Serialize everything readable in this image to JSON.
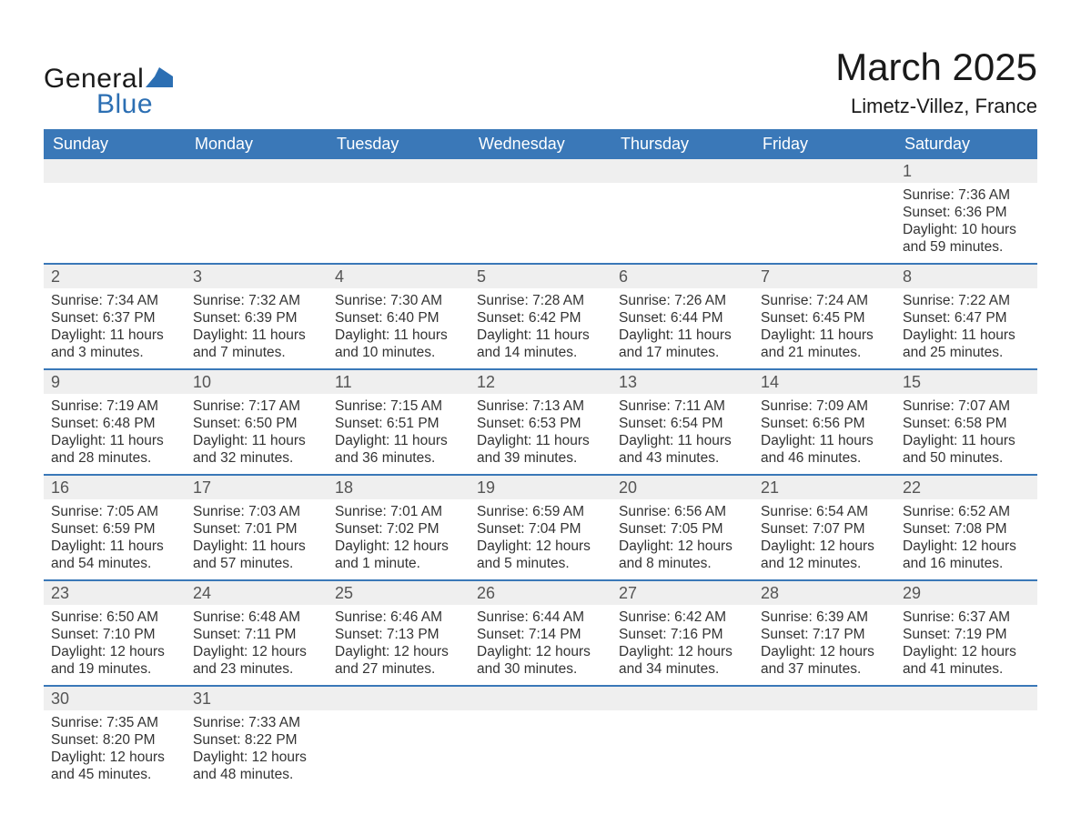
{
  "brand": {
    "general": "General",
    "blue": "Blue"
  },
  "title": "March 2025",
  "location": "Limetz-Villez, France",
  "colors": {
    "header_bg": "#3a78b8",
    "header_text": "#ffffff",
    "daynum_bg": "#efefef",
    "row_border": "#3a78b8",
    "body_text": "#333333",
    "logo_blue": "#2c6fb3",
    "page_bg": "#ffffff"
  },
  "typography": {
    "title_fontsize": 42,
    "location_fontsize": 22,
    "dayhead_fontsize": 18,
    "daynum_fontsize": 18,
    "body_fontsize": 15.5,
    "logo_fontsize": 30
  },
  "day_headers": [
    "Sunday",
    "Monday",
    "Tuesday",
    "Wednesday",
    "Thursday",
    "Friday",
    "Saturday"
  ],
  "weeks": [
    [
      {
        "n": "",
        "sr": "",
        "ss": "",
        "dl1": "",
        "dl2": ""
      },
      {
        "n": "",
        "sr": "",
        "ss": "",
        "dl1": "",
        "dl2": ""
      },
      {
        "n": "",
        "sr": "",
        "ss": "",
        "dl1": "",
        "dl2": ""
      },
      {
        "n": "",
        "sr": "",
        "ss": "",
        "dl1": "",
        "dl2": ""
      },
      {
        "n": "",
        "sr": "",
        "ss": "",
        "dl1": "",
        "dl2": ""
      },
      {
        "n": "",
        "sr": "",
        "ss": "",
        "dl1": "",
        "dl2": ""
      },
      {
        "n": "1",
        "sr": "Sunrise: 7:36 AM",
        "ss": "Sunset: 6:36 PM",
        "dl1": "Daylight: 10 hours",
        "dl2": "and 59 minutes."
      }
    ],
    [
      {
        "n": "2",
        "sr": "Sunrise: 7:34 AM",
        "ss": "Sunset: 6:37 PM",
        "dl1": "Daylight: 11 hours",
        "dl2": "and 3 minutes."
      },
      {
        "n": "3",
        "sr": "Sunrise: 7:32 AM",
        "ss": "Sunset: 6:39 PM",
        "dl1": "Daylight: 11 hours",
        "dl2": "and 7 minutes."
      },
      {
        "n": "4",
        "sr": "Sunrise: 7:30 AM",
        "ss": "Sunset: 6:40 PM",
        "dl1": "Daylight: 11 hours",
        "dl2": "and 10 minutes."
      },
      {
        "n": "5",
        "sr": "Sunrise: 7:28 AM",
        "ss": "Sunset: 6:42 PM",
        "dl1": "Daylight: 11 hours",
        "dl2": "and 14 minutes."
      },
      {
        "n": "6",
        "sr": "Sunrise: 7:26 AM",
        "ss": "Sunset: 6:44 PM",
        "dl1": "Daylight: 11 hours",
        "dl2": "and 17 minutes."
      },
      {
        "n": "7",
        "sr": "Sunrise: 7:24 AM",
        "ss": "Sunset: 6:45 PM",
        "dl1": "Daylight: 11 hours",
        "dl2": "and 21 minutes."
      },
      {
        "n": "8",
        "sr": "Sunrise: 7:22 AM",
        "ss": "Sunset: 6:47 PM",
        "dl1": "Daylight: 11 hours",
        "dl2": "and 25 minutes."
      }
    ],
    [
      {
        "n": "9",
        "sr": "Sunrise: 7:19 AM",
        "ss": "Sunset: 6:48 PM",
        "dl1": "Daylight: 11 hours",
        "dl2": "and 28 minutes."
      },
      {
        "n": "10",
        "sr": "Sunrise: 7:17 AM",
        "ss": "Sunset: 6:50 PM",
        "dl1": "Daylight: 11 hours",
        "dl2": "and 32 minutes."
      },
      {
        "n": "11",
        "sr": "Sunrise: 7:15 AM",
        "ss": "Sunset: 6:51 PM",
        "dl1": "Daylight: 11 hours",
        "dl2": "and 36 minutes."
      },
      {
        "n": "12",
        "sr": "Sunrise: 7:13 AM",
        "ss": "Sunset: 6:53 PM",
        "dl1": "Daylight: 11 hours",
        "dl2": "and 39 minutes."
      },
      {
        "n": "13",
        "sr": "Sunrise: 7:11 AM",
        "ss": "Sunset: 6:54 PM",
        "dl1": "Daylight: 11 hours",
        "dl2": "and 43 minutes."
      },
      {
        "n": "14",
        "sr": "Sunrise: 7:09 AM",
        "ss": "Sunset: 6:56 PM",
        "dl1": "Daylight: 11 hours",
        "dl2": "and 46 minutes."
      },
      {
        "n": "15",
        "sr": "Sunrise: 7:07 AM",
        "ss": "Sunset: 6:58 PM",
        "dl1": "Daylight: 11 hours",
        "dl2": "and 50 minutes."
      }
    ],
    [
      {
        "n": "16",
        "sr": "Sunrise: 7:05 AM",
        "ss": "Sunset: 6:59 PM",
        "dl1": "Daylight: 11 hours",
        "dl2": "and 54 minutes."
      },
      {
        "n": "17",
        "sr": "Sunrise: 7:03 AM",
        "ss": "Sunset: 7:01 PM",
        "dl1": "Daylight: 11 hours",
        "dl2": "and 57 minutes."
      },
      {
        "n": "18",
        "sr": "Sunrise: 7:01 AM",
        "ss": "Sunset: 7:02 PM",
        "dl1": "Daylight: 12 hours",
        "dl2": "and 1 minute."
      },
      {
        "n": "19",
        "sr": "Sunrise: 6:59 AM",
        "ss": "Sunset: 7:04 PM",
        "dl1": "Daylight: 12 hours",
        "dl2": "and 5 minutes."
      },
      {
        "n": "20",
        "sr": "Sunrise: 6:56 AM",
        "ss": "Sunset: 7:05 PM",
        "dl1": "Daylight: 12 hours",
        "dl2": "and 8 minutes."
      },
      {
        "n": "21",
        "sr": "Sunrise: 6:54 AM",
        "ss": "Sunset: 7:07 PM",
        "dl1": "Daylight: 12 hours",
        "dl2": "and 12 minutes."
      },
      {
        "n": "22",
        "sr": "Sunrise: 6:52 AM",
        "ss": "Sunset: 7:08 PM",
        "dl1": "Daylight: 12 hours",
        "dl2": "and 16 minutes."
      }
    ],
    [
      {
        "n": "23",
        "sr": "Sunrise: 6:50 AM",
        "ss": "Sunset: 7:10 PM",
        "dl1": "Daylight: 12 hours",
        "dl2": "and 19 minutes."
      },
      {
        "n": "24",
        "sr": "Sunrise: 6:48 AM",
        "ss": "Sunset: 7:11 PM",
        "dl1": "Daylight: 12 hours",
        "dl2": "and 23 minutes."
      },
      {
        "n": "25",
        "sr": "Sunrise: 6:46 AM",
        "ss": "Sunset: 7:13 PM",
        "dl1": "Daylight: 12 hours",
        "dl2": "and 27 minutes."
      },
      {
        "n": "26",
        "sr": "Sunrise: 6:44 AM",
        "ss": "Sunset: 7:14 PM",
        "dl1": "Daylight: 12 hours",
        "dl2": "and 30 minutes."
      },
      {
        "n": "27",
        "sr": "Sunrise: 6:42 AM",
        "ss": "Sunset: 7:16 PM",
        "dl1": "Daylight: 12 hours",
        "dl2": "and 34 minutes."
      },
      {
        "n": "28",
        "sr": "Sunrise: 6:39 AM",
        "ss": "Sunset: 7:17 PM",
        "dl1": "Daylight: 12 hours",
        "dl2": "and 37 minutes."
      },
      {
        "n": "29",
        "sr": "Sunrise: 6:37 AM",
        "ss": "Sunset: 7:19 PM",
        "dl1": "Daylight: 12 hours",
        "dl2": "and 41 minutes."
      }
    ],
    [
      {
        "n": "30",
        "sr": "Sunrise: 7:35 AM",
        "ss": "Sunset: 8:20 PM",
        "dl1": "Daylight: 12 hours",
        "dl2": "and 45 minutes."
      },
      {
        "n": "31",
        "sr": "Sunrise: 7:33 AM",
        "ss": "Sunset: 8:22 PM",
        "dl1": "Daylight: 12 hours",
        "dl2": "and 48 minutes."
      },
      {
        "n": "",
        "sr": "",
        "ss": "",
        "dl1": "",
        "dl2": ""
      },
      {
        "n": "",
        "sr": "",
        "ss": "",
        "dl1": "",
        "dl2": ""
      },
      {
        "n": "",
        "sr": "",
        "ss": "",
        "dl1": "",
        "dl2": ""
      },
      {
        "n": "",
        "sr": "",
        "ss": "",
        "dl1": "",
        "dl2": ""
      },
      {
        "n": "",
        "sr": "",
        "ss": "",
        "dl1": "",
        "dl2": ""
      }
    ]
  ]
}
